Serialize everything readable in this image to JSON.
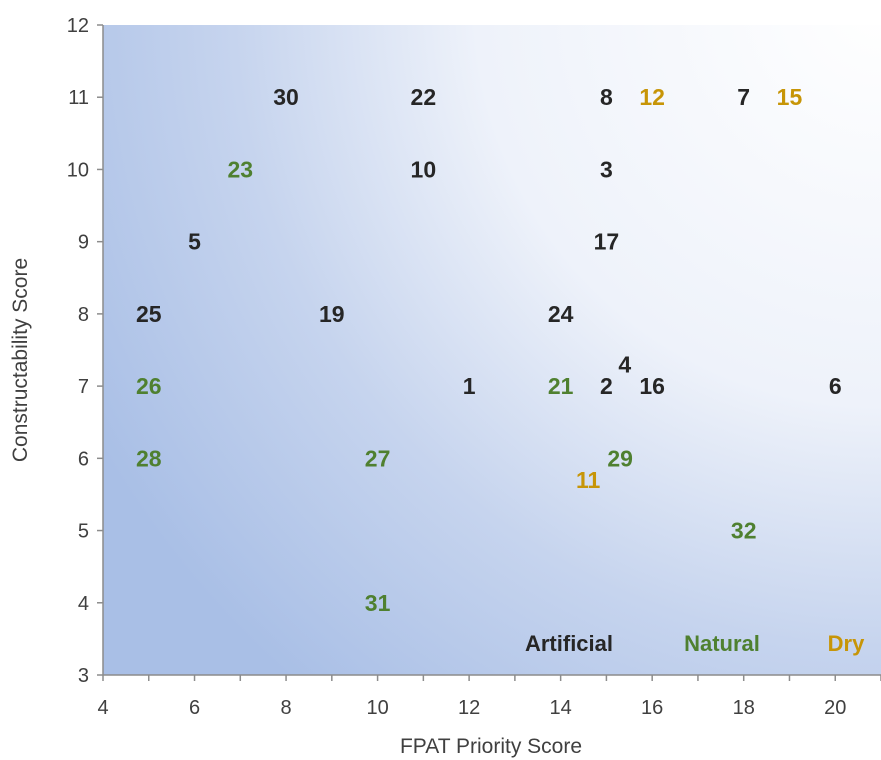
{
  "chart_data": {
    "type": "scatter",
    "xlabel": "FPAT Priority Score",
    "ylabel": "Constructability  Score",
    "xlim": [
      4,
      21
    ],
    "ylim": [
      3,
      12
    ],
    "x_ticks": [
      4,
      6,
      8,
      10,
      12,
      14,
      16,
      18,
      20
    ],
    "y_ticks": [
      3,
      4,
      5,
      6,
      7,
      8,
      9,
      10,
      11,
      12
    ],
    "background": "blue-to-white radial gradient, white toward top-right",
    "legend_position": "bottom-right",
    "series": [
      {
        "name": "Artificial",
        "color": "#262626",
        "points": [
          {
            "label": "30",
            "x": 8,
            "y": 11
          },
          {
            "label": "22",
            "x": 11,
            "y": 11
          },
          {
            "label": "8",
            "x": 15,
            "y": 11
          },
          {
            "label": "7",
            "x": 18,
            "y": 11
          },
          {
            "label": "10",
            "x": 11,
            "y": 10
          },
          {
            "label": "3",
            "x": 15,
            "y": 10
          },
          {
            "label": "5",
            "x": 6,
            "y": 9
          },
          {
            "label": "17",
            "x": 15,
            "y": 9
          },
          {
            "label": "25",
            "x": 5,
            "y": 8
          },
          {
            "label": "19",
            "x": 9,
            "y": 8
          },
          {
            "label": "24",
            "x": 14,
            "y": 8
          },
          {
            "label": "4",
            "x": 15.4,
            "y": 7.3
          },
          {
            "label": "1",
            "x": 12,
            "y": 7
          },
          {
            "label": "2",
            "x": 15,
            "y": 7
          },
          {
            "label": "16",
            "x": 16,
            "y": 7
          },
          {
            "label": "6",
            "x": 20,
            "y": 7
          }
        ]
      },
      {
        "name": "Natural",
        "color": "#4f8030",
        "points": [
          {
            "label": "23",
            "x": 7,
            "y": 10
          },
          {
            "label": "26",
            "x": 5,
            "y": 7
          },
          {
            "label": "21",
            "x": 14,
            "y": 7
          },
          {
            "label": "28",
            "x": 5,
            "y": 6
          },
          {
            "label": "27",
            "x": 10,
            "y": 6
          },
          {
            "label": "29",
            "x": 15.3,
            "y": 6
          },
          {
            "label": "32",
            "x": 18,
            "y": 5
          },
          {
            "label": "31",
            "x": 10,
            "y": 4
          }
        ]
      },
      {
        "name": "Dry",
        "color": "#c79507",
        "points": [
          {
            "label": "12",
            "x": 16,
            "y": 11
          },
          {
            "label": "15",
            "x": 19,
            "y": 11
          },
          {
            "label": "11",
            "x": 14.6,
            "y": 5.7
          }
        ]
      }
    ]
  }
}
